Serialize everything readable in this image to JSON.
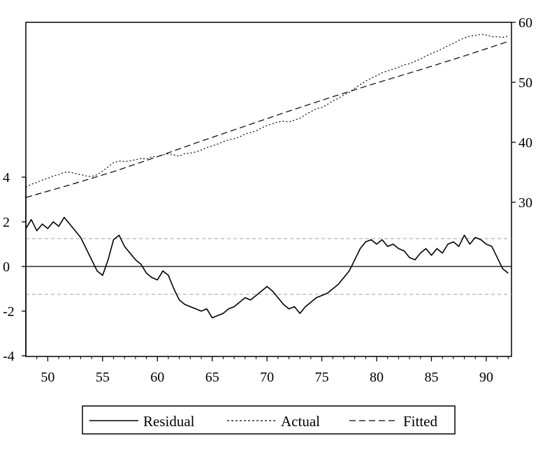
{
  "chart_data": {
    "type": "line",
    "title": "",
    "xlabel": "",
    "x_tick_labels": [
      "50",
      "55",
      "60",
      "65",
      "70",
      "75",
      "80",
      "85",
      "90"
    ],
    "x_ticks": [
      50,
      55,
      60,
      65,
      70,
      75,
      80,
      85,
      90
    ],
    "xlim": [
      48,
      92.3
    ],
    "left_axis": {
      "label": "",
      "range": [
        -4,
        4
      ],
      "tick_labels": [
        "4",
        "2",
        "0",
        "-2",
        "-4"
      ],
      "ticks": [
        4,
        2,
        0,
        -2,
        -4
      ]
    },
    "right_axis": {
      "label": "",
      "range": [
        20,
        60
      ],
      "tick_labels": [
        "60",
        "50",
        "40",
        "30"
      ],
      "ticks": [
        60,
        50,
        40,
        30
      ]
    },
    "reference_lines": {
      "residual_zero": 0,
      "residual_bands": [
        1.25,
        -1.25
      ]
    },
    "legend_position": "bottom",
    "grid": false,
    "series": [
      {
        "name": "Residual",
        "axis": "left",
        "style": "solid",
        "x": [
          48,
          48.5,
          49,
          49.5,
          50,
          50.5,
          51,
          51.5,
          52,
          52.5,
          53,
          53.5,
          54,
          54.5,
          55,
          55.5,
          56,
          56.5,
          57,
          57.5,
          58,
          58.5,
          59,
          59.5,
          60,
          60.5,
          61,
          61.5,
          62,
          62.5,
          63,
          63.5,
          64,
          64.5,
          65,
          65.5,
          66,
          66.5,
          67,
          67.5,
          68,
          68.5,
          69,
          69.5,
          70,
          70.5,
          71,
          71.5,
          72,
          72.5,
          73,
          73.5,
          74,
          74.5,
          75,
          75.5,
          76,
          76.5,
          77,
          77.5,
          78,
          78.5,
          79,
          79.5,
          80,
          80.5,
          81,
          81.5,
          82,
          82.5,
          83,
          83.5,
          84,
          84.5,
          85,
          85.5,
          86,
          86.5,
          87,
          87.5,
          88,
          88.5,
          89,
          89.5,
          90,
          90.5,
          91,
          91.5,
          92
        ],
        "values": [
          1.7,
          2.1,
          1.6,
          1.9,
          1.7,
          2.0,
          1.8,
          2.2,
          1.9,
          1.6,
          1.3,
          0.8,
          0.3,
          -0.2,
          -0.4,
          0.3,
          1.2,
          1.4,
          0.9,
          0.6,
          0.3,
          0.1,
          -0.3,
          -0.5,
          -0.6,
          -0.2,
          -0.4,
          -1.0,
          -1.5,
          -1.7,
          -1.8,
          -1.9,
          -2.0,
          -1.9,
          -2.3,
          -2.2,
          -2.1,
          -1.9,
          -1.8,
          -1.6,
          -1.4,
          -1.5,
          -1.3,
          -1.1,
          -0.9,
          -1.1,
          -1.4,
          -1.7,
          -1.9,
          -1.8,
          -2.1,
          -1.8,
          -1.6,
          -1.4,
          -1.3,
          -1.2,
          -1.0,
          -0.8,
          -0.5,
          -0.2,
          0.3,
          0.8,
          1.1,
          1.2,
          1.0,
          1.2,
          0.9,
          1.0,
          0.8,
          0.7,
          0.4,
          0.3,
          0.6,
          0.8,
          0.5,
          0.8,
          0.6,
          1.0,
          1.1,
          0.9,
          1.4,
          1.0,
          1.3,
          1.2,
          1.0,
          0.9,
          0.4,
          -0.1,
          -0.3
        ]
      },
      {
        "name": "Actual",
        "axis": "right",
        "style": "dotted",
        "x": [
          48,
          48.5,
          49,
          49.5,
          50,
          50.5,
          51,
          51.5,
          52,
          52.5,
          53,
          53.5,
          54,
          54.5,
          55,
          55.5,
          56,
          56.5,
          57,
          57.5,
          58,
          58.5,
          59,
          59.5,
          60,
          60.5,
          61,
          61.5,
          62,
          62.5,
          63,
          63.5,
          64,
          64.5,
          65,
          65.5,
          66,
          66.5,
          67,
          67.5,
          68,
          68.5,
          69,
          69.5,
          70,
          70.5,
          71,
          71.5,
          72,
          72.5,
          73,
          73.5,
          74,
          74.5,
          75,
          75.5,
          76,
          76.5,
          77,
          77.5,
          78,
          78.5,
          79,
          79.5,
          80,
          80.5,
          81,
          81.5,
          82,
          82.5,
          83,
          83.5,
          84,
          84.5,
          85,
          85.5,
          86,
          86.5,
          87,
          87.5,
          88,
          88.5,
          89,
          89.5,
          90,
          90.5,
          91,
          91.5,
          92
        ],
        "values": [
          32.5,
          33.0,
          33.3,
          33.7,
          34.0,
          34.4,
          34.6,
          35.0,
          35.0,
          34.8,
          34.6,
          34.4,
          34.3,
          34.6,
          35.2,
          35.9,
          36.6,
          36.9,
          36.8,
          36.9,
          37.1,
          37.3,
          37.2,
          37.6,
          37.6,
          37.9,
          38.1,
          37.9,
          37.7,
          38.1,
          38.2,
          38.4,
          38.7,
          39.1,
          39.4,
          39.7,
          40.1,
          40.4,
          40.6,
          40.9,
          41.4,
          41.6,
          41.9,
          42.4,
          42.8,
          43.1,
          43.4,
          43.5,
          43.4,
          43.7,
          44.0,
          44.6,
          45.1,
          45.6,
          45.8,
          46.3,
          46.9,
          47.3,
          47.9,
          48.3,
          49.0,
          49.6,
          50.2,
          50.7,
          51.1,
          51.6,
          51.9,
          52.2,
          52.5,
          52.9,
          53.1,
          53.5,
          53.9,
          54.4,
          54.8,
          55.2,
          55.6,
          56.1,
          56.5,
          57.0,
          57.4,
          57.7,
          57.8,
          58.0,
          57.9,
          57.6,
          57.6,
          57.5,
          57.7
        ]
      },
      {
        "name": "Fitted",
        "axis": "right",
        "style": "dashed",
        "x": [
          48,
          52,
          56,
          60,
          64,
          68,
          72,
          76,
          80,
          84,
          88,
          92
        ],
        "values": [
          30.8,
          32.9,
          35.1,
          37.6,
          40.2,
          42.7,
          45.2,
          47.6,
          49.9,
          52.1,
          54.4,
          56.8
        ]
      }
    ],
    "colors": {
      "line": "#000000",
      "reference_band": "#b0b0b0"
    }
  }
}
